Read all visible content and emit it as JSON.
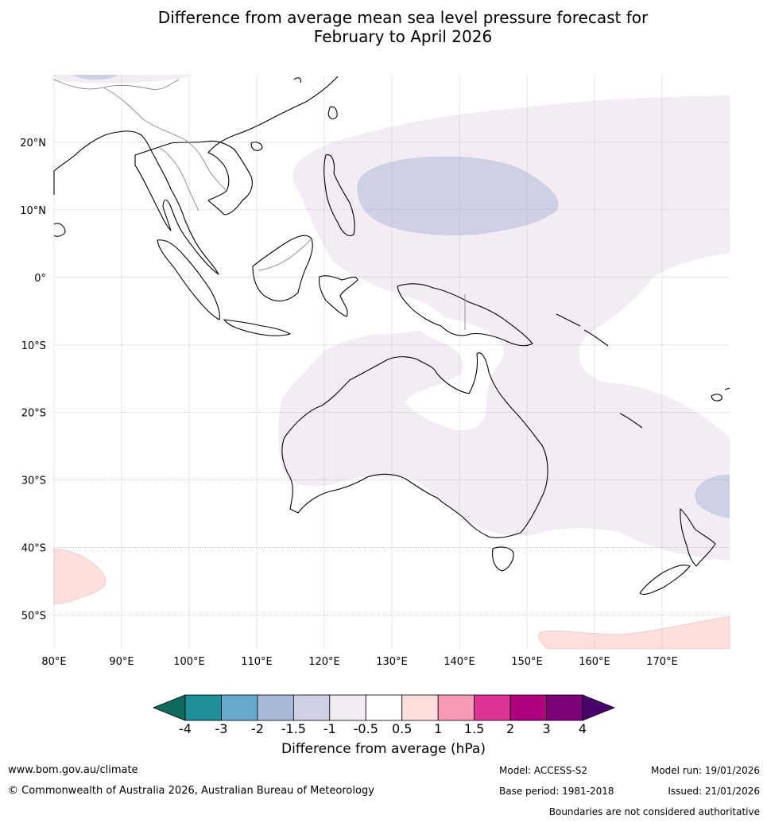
{
  "title_line1": "Difference from average mean sea level pressure forecast for",
  "title_line2": "February to April 2026",
  "axes": {
    "lon_ticks": [
      "80°E",
      "90°E",
      "100°E",
      "110°E",
      "120°E",
      "130°E",
      "140°E",
      "150°E",
      "160°E",
      "170°E"
    ],
    "lat_ticks": [
      "20°N",
      "10°N",
      "0°",
      "10°S",
      "20°S",
      "30°S",
      "40°S",
      "50°S"
    ],
    "lon_range": [
      80,
      180
    ],
    "lat_range": [
      -55,
      30
    ]
  },
  "colorbar": {
    "label": "Difference from average (hPa)",
    "tick_labels": [
      "-4",
      "-3",
      "-2",
      "-1.5",
      "-1",
      "-0.5",
      "0.5",
      "1",
      "1.5",
      "2",
      "3",
      "4"
    ],
    "colors": [
      "#0c6b5c",
      "#1f9098",
      "#66aad0",
      "#a9b9d8",
      "#cfd0e6",
      "#f3ecf5",
      "#ffffff",
      "#fde0de",
      "#f99ab6",
      "#dd3597",
      "#ad017e",
      "#7a0177",
      "#49006a"
    ]
  },
  "footer": {
    "url": "www.bom.gov.au/climate",
    "copyright": "© Commonwealth of Australia 2026, Australian Bureau of Meteorology",
    "model": "Model: ACCESS-S2",
    "model_run": "Model run: 19/01/2026",
    "base_period": "Base period: 1981-2018",
    "issued": "Issued: 21/01/2026",
    "disclaimer": "Boundaries are not considered authoritative"
  }
}
